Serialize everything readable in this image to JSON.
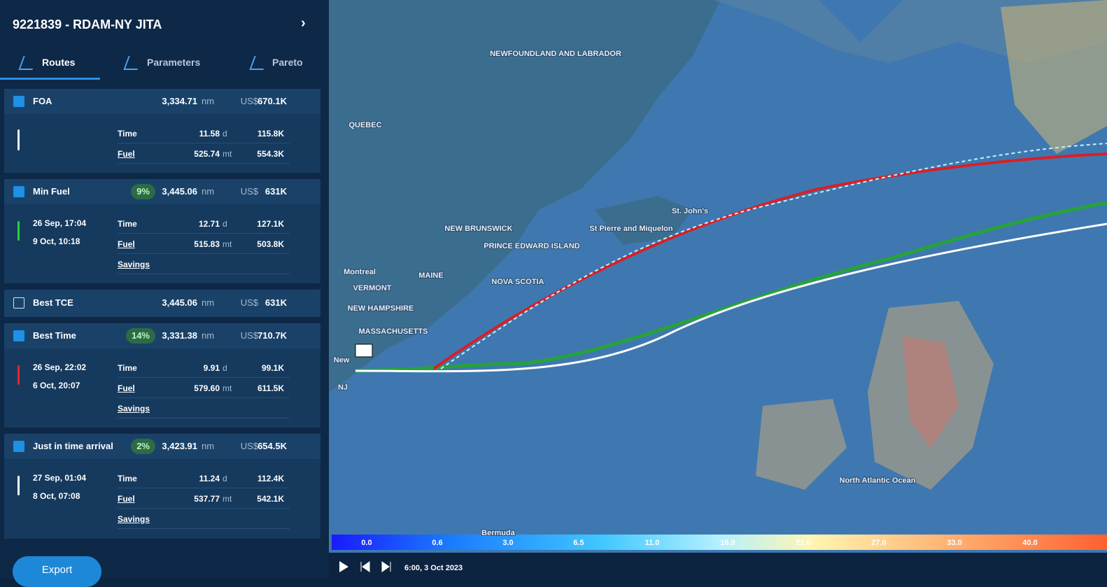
{
  "header": {
    "title": "9221839 - RDAM-NY JITA"
  },
  "tabs": [
    "Routes",
    "Parameters",
    "Pareto"
  ],
  "routes": [
    {
      "name": "FOA",
      "checked": true,
      "color": "#e8f4ff",
      "distance": "3,334.71",
      "distance_unit": "nm",
      "currency": "US$",
      "cost": "670.1K",
      "time_label": "Time",
      "time": "11.58",
      "time_unit": "d",
      "time_cost": "115.8K",
      "fuel_label": "Fuel",
      "fuel": "525.74",
      "fuel_unit": "mt",
      "fuel_cost": "554.3K"
    },
    {
      "name": "Min Fuel",
      "checked": true,
      "color": "#2ecc40",
      "badge": "9%",
      "distance": "3,445.06",
      "distance_unit": "nm",
      "currency": "US$",
      "cost": "631K",
      "start": "26 Sep, 17:04",
      "end": "9 Oct, 10:18",
      "time_label": "Time",
      "time": "12.71",
      "time_unit": "d",
      "time_cost": "127.1K",
      "fuel_label": "Fuel",
      "fuel": "515.83",
      "fuel_unit": "mt",
      "fuel_cost": "503.8K",
      "savings_label": "Savings"
    },
    {
      "name": "Best TCE",
      "checked": false,
      "distance": "3,445.06",
      "distance_unit": "nm",
      "currency": "US$",
      "cost": "631K"
    },
    {
      "name": "Best Time",
      "checked": true,
      "color": "#e8262e",
      "badge": "14%",
      "distance": "3,331.38",
      "distance_unit": "nm",
      "currency": "US$",
      "cost": "710.7K",
      "start": "26 Sep, 22:02",
      "end": "6 Oct, 20:07",
      "time_label": "Time",
      "time": "9.91",
      "time_unit": "d",
      "time_cost": "99.1K",
      "fuel_label": "Fuel",
      "fuel": "579.60",
      "fuel_unit": "mt",
      "fuel_cost": "611.5K",
      "savings_label": "Savings"
    },
    {
      "name": "Just in time arrival",
      "checked": true,
      "color": "#ffffff",
      "badge": "2%",
      "distance": "3,423.91",
      "distance_unit": "nm",
      "currency": "US$",
      "cost": "654.5K",
      "start": "27 Sep, 01:04",
      "end": "8 Oct, 07:08",
      "time_label": "Time",
      "time": "11.24",
      "time_unit": "d",
      "time_cost": "112.4K",
      "fuel_label": "Fuel",
      "fuel": "537.77",
      "fuel_unit": "mt",
      "fuel_cost": "542.1K",
      "savings_label": "Savings"
    }
  ],
  "export": "Export",
  "map_labels": [
    "NEWFOUNDLAND AND LABRADOR",
    "QUEBEC",
    "NEW BRUNSWICK",
    "PRINCE EDWARD ISLAND",
    "NOVA SCOTIA",
    "St Pierre and Miquelon",
    "St. John's",
    "Montreal",
    "VERMONT",
    "MAINE",
    "NEW HAMPSHIRE",
    "MASSACHUSETTS",
    "New",
    "NJ",
    "North Atlantic Ocean",
    "Bermuda"
  ],
  "scale": {
    "ticks": [
      {
        "value": 0,
        "label": "0.0"
      },
      0.6,
      {
        "value": 3,
        "label": "3.0"
      },
      6.5,
      {
        "value": 11,
        "label": "11.0"
      },
      {
        "value": 16,
        "label": "16.0"
      },
      {
        "value": 21,
        "label": "21.0"
      },
      {
        "value": 27,
        "label": "27.0"
      },
      {
        "value": 33,
        "label": "33.0"
      },
      {
        "value": 40,
        "label": "40.0"
      }
    ]
  },
  "playback": {
    "time": "6:00, 3 Oct 2023"
  }
}
